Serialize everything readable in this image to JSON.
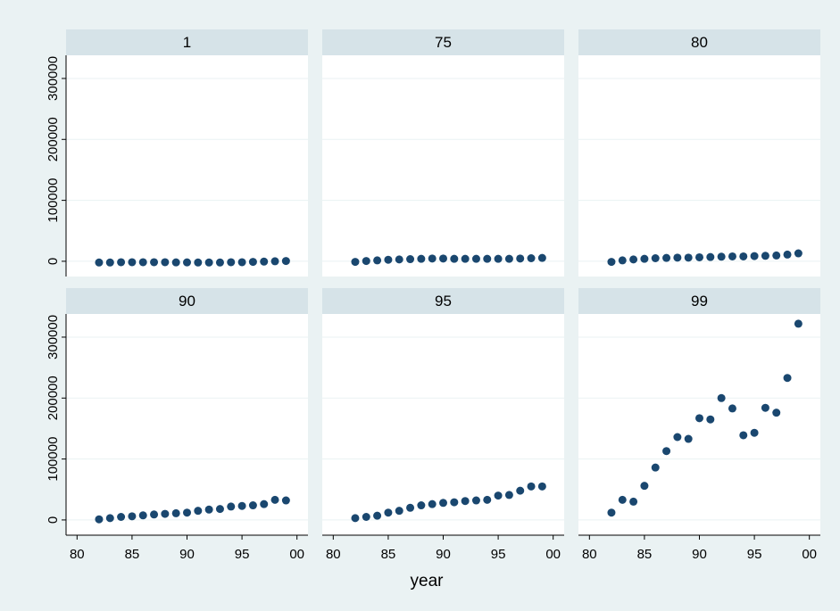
{
  "chart_data": {
    "type": "scatter",
    "xlabel": "year",
    "color": "#1a476f",
    "grid": true,
    "x": [
      82,
      83,
      84,
      85,
      86,
      87,
      88,
      89,
      90,
      91,
      92,
      93,
      94,
      95,
      96,
      97,
      98,
      99
    ],
    "xlim": [
      79,
      101
    ],
    "xticks": [
      80,
      85,
      90,
      95,
      {
        "value": 100,
        "label": "00"
      }
    ],
    "ylim": [
      -25000,
      338000
    ],
    "yticks": [
      0,
      100000,
      200000,
      300000
    ],
    "panels": [
      {
        "title": "1",
        "values": [
          -2000,
          -2000,
          -1500,
          -1500,
          -1500,
          -1500,
          -1500,
          -1800,
          -1800,
          -2000,
          -2000,
          -2000,
          -1500,
          -1500,
          -1000,
          -500,
          0,
          500
        ]
      },
      {
        "title": "75",
        "values": [
          -1000,
          500,
          1500,
          2500,
          3000,
          3500,
          4000,
          4500,
          4500,
          4000,
          4000,
          4000,
          4000,
          4000,
          4000,
          4500,
          5000,
          5500
        ]
      },
      {
        "title": "80",
        "values": [
          -1000,
          1500,
          3000,
          4000,
          5000,
          5500,
          6000,
          6000,
          6500,
          7000,
          7500,
          8000,
          8000,
          8500,
          9000,
          9500,
          11000,
          13000
        ]
      },
      {
        "title": "90",
        "values": [
          1000,
          3000,
          5000,
          6000,
          7500,
          9000,
          10000,
          11000,
          12000,
          15000,
          17000,
          18000,
          22000,
          23000,
          24000,
          26000,
          33000,
          32000
        ]
      },
      {
        "title": "95",
        "values": [
          3000,
          5000,
          7000,
          12000,
          15000,
          20000,
          24000,
          26000,
          28000,
          29000,
          31000,
          32000,
          33000,
          40000,
          41000,
          48000,
          55000,
          55000
        ]
      },
      {
        "title": "99",
        "values": [
          12000,
          33000,
          30000,
          56000,
          86000,
          113000,
          136000,
          133000,
          167000,
          165000,
          200000,
          183000,
          139000,
          143000,
          184000,
          176000,
          233000,
          322000
        ]
      }
    ]
  }
}
